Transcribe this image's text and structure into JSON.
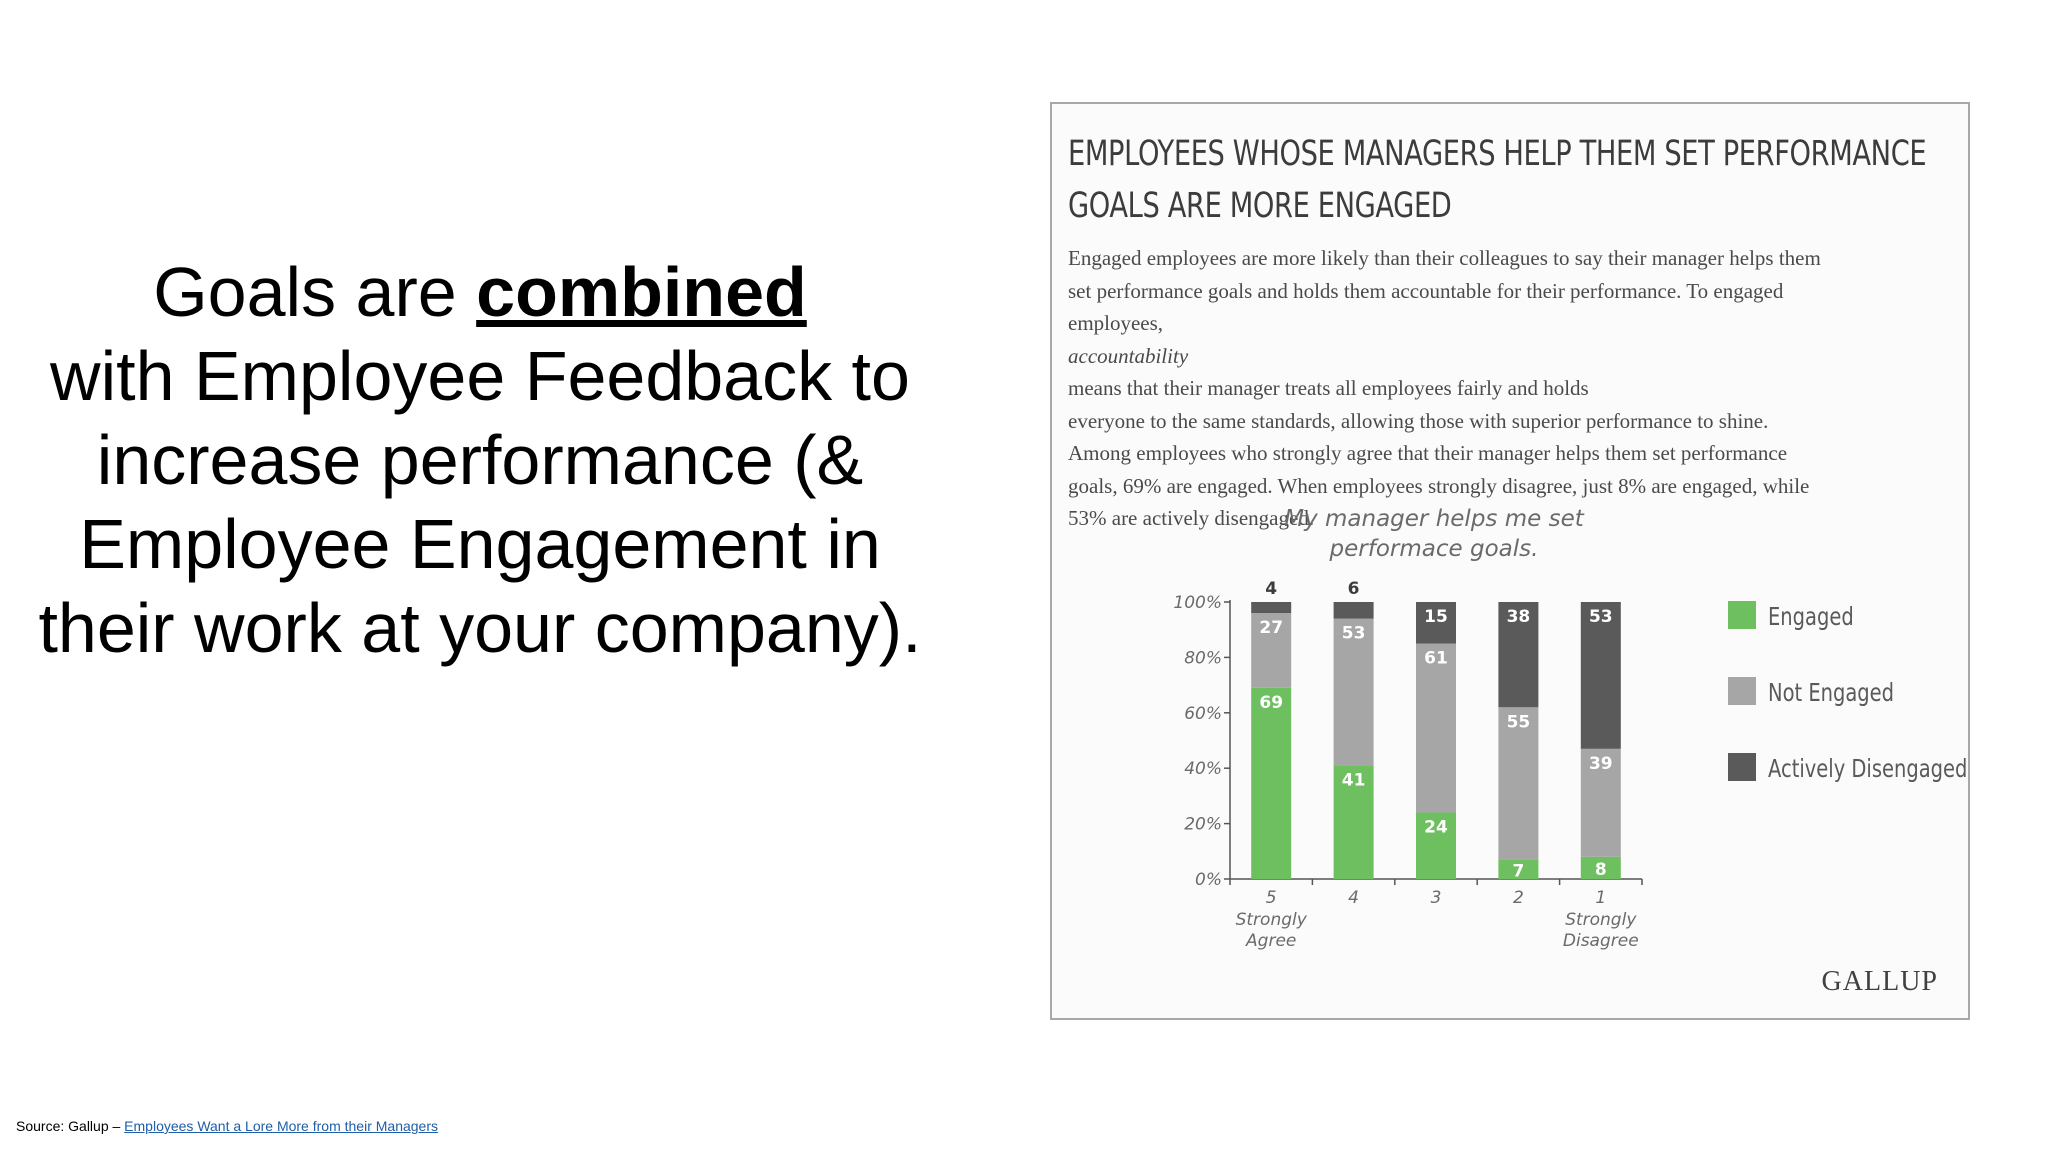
{
  "headline": {
    "part1": "Goals are ",
    "emphasis": "combined",
    "line2": "with Employee Feedback to",
    "line3": "increase performance (&",
    "line4": "Employee Engagement in",
    "line5": "their work at your company)."
  },
  "source": {
    "prefix": "Source: Gallup – ",
    "link_text": "Employees Want a Lore More from their Managers"
  },
  "figure": {
    "title_line1": "EMPLOYEES WHOSE MANAGERS HELP THEM SET PERFORMANCE",
    "title_line2": "GOALS ARE MORE ENGAGED",
    "body_line1": "Engaged employees are more likely than their colleagues to say their manager helps them",
    "body_line2": "set performance goals and holds them accountable for their performance. To engaged",
    "body_line3_pre": "employees, ",
    "body_line3_em": "accountability",
    "body_line3_post": " means that their manager treats all employees fairly and holds",
    "body_line4": "everyone to the same standards, allowing those with superior performance to shine.",
    "body_line5": "Among employees who strongly agree that their manager helps them set performance",
    "body_line6": "goals, 69% are engaged. When employees strongly disagree, just 8% are engaged, while",
    "body_line7": "53% are actively disengaged.",
    "logo": "GALLUP"
  },
  "chart_data": {
    "type": "bar",
    "stacked": true,
    "title": "My manager helps me set performace goals.",
    "title_lines": [
      "My manager helps me set",
      "performace goals."
    ],
    "categories": [
      "5",
      "4",
      "3",
      "2",
      "1"
    ],
    "category_sublabels": [
      [
        "Strongly",
        "Agree"
      ],
      [],
      [],
      [],
      [
        "Strongly",
        "Disagree"
      ]
    ],
    "series": [
      {
        "name": "Engaged",
        "color": "#6dbf5f",
        "label_color": "#ffffff",
        "values": [
          69,
          41,
          24,
          7,
          8
        ]
      },
      {
        "name": "Not Engaged",
        "color": "#a6a6a6",
        "label_color": "#ffffff",
        "values": [
          27,
          53,
          61,
          55,
          39
        ]
      },
      {
        "name": "Actively Disengaged",
        "color": "#5a5a5a",
        "label_color": "#ffffff",
        "values": [
          4,
          6,
          15,
          38,
          53
        ]
      }
    ],
    "ylim": [
      0,
      100
    ],
    "yticks": [
      "0%",
      "20%",
      "40%",
      "60%",
      "80%",
      "100%"
    ],
    "ytick_values": [
      0,
      20,
      40,
      60,
      80,
      100
    ],
    "legend_position": "right",
    "grid": false
  }
}
